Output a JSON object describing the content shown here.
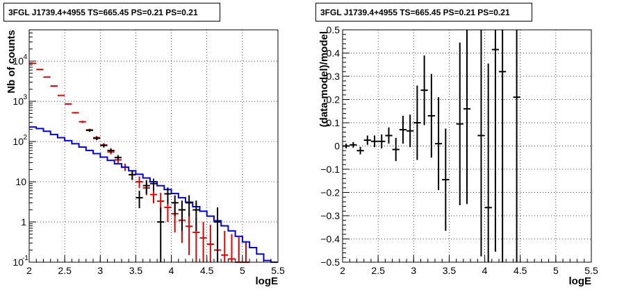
{
  "panels": [
    {
      "title": "3FGL J1739.4+4955 TS=665.45 PS=0.21 PS=0.21"
    },
    {
      "title": "3FGL J1739.4+4955 TS=665.45 PS=0.21 PS=0.21"
    }
  ],
  "chart_data": [
    {
      "type": "line",
      "title": "3FGL J1739.4+4955 TS=665.45 PS=0.21 PS=0.21",
      "xlabel": "logE",
      "ylabel": "Nb of counts",
      "xlim": [
        2,
        5.5
      ],
      "ylim": [
        0.1,
        60000
      ],
      "yscale": "log",
      "grid": true,
      "x_ticks": [
        "2",
        "2.5",
        "3",
        "3.5",
        "4",
        "4.5",
        "5",
        "5.5"
      ],
      "y_ticks": [
        {
          "value": 0.1,
          "label": "10",
          "exp": "-1"
        },
        {
          "value": 1,
          "label": "1",
          "exp": ""
        },
        {
          "value": 10,
          "label": "10",
          "exp": ""
        },
        {
          "value": 100,
          "label": "10",
          "exp": "2"
        },
        {
          "value": 1000,
          "label": "10",
          "exp": "3"
        },
        {
          "value": 10000,
          "label": "10",
          "exp": "4"
        }
      ],
      "colors": {
        "total_model": "#dd0000",
        "source_model": "#0000dd",
        "data": "#000000"
      },
      "series": [
        {
          "type": "errorbar",
          "color": "#dd0000",
          "points": [
            {
              "x": 2.05,
              "y": 8800,
              "lo": 8600,
              "hi": 9000
            },
            {
              "x": 2.15,
              "y": 6200,
              "lo": 6100,
              "hi": 6300
            },
            {
              "x": 2.25,
              "y": 4000,
              "lo": 3900,
              "hi": 4100
            },
            {
              "x": 2.35,
              "y": 2400,
              "lo": 2350,
              "hi": 2450
            },
            {
              "x": 2.45,
              "y": 1400,
              "lo": 1360,
              "hi": 1440
            },
            {
              "x": 2.55,
              "y": 860,
              "lo": 830,
              "hi": 890
            },
            {
              "x": 2.65,
              "y": 520,
              "lo": 495,
              "hi": 545
            },
            {
              "x": 2.75,
              "y": 310,
              "lo": 290,
              "hi": 330
            },
            {
              "x": 2.85,
              "y": 195,
              "lo": 180,
              "hi": 210
            },
            {
              "x": 2.95,
              "y": 125,
              "lo": 113,
              "hi": 137
            },
            {
              "x": 3.05,
              "y": 82,
              "lo": 73,
              "hi": 91
            },
            {
              "x": 3.15,
              "y": 55,
              "lo": 48,
              "hi": 62
            },
            {
              "x": 3.25,
              "y": 35,
              "lo": 29,
              "hi": 41
            },
            {
              "x": 3.35,
              "y": 23,
              "lo": 18.5,
              "hi": 28
            },
            {
              "x": 3.45,
              "y": 15,
              "lo": 11.3,
              "hi": 19
            },
            {
              "x": 3.55,
              "y": 10,
              "lo": 7,
              "hi": 13.5
            },
            {
              "x": 3.65,
              "y": 7,
              "lo": 4.6,
              "hi": 9.8
            },
            {
              "x": 3.75,
              "y": 4.8,
              "lo": 2.9,
              "hi": 7.2
            },
            {
              "x": 3.85,
              "y": 3.3,
              "lo": 1.7,
              "hi": 5.3
            },
            {
              "x": 3.95,
              "y": 2.3,
              "lo": 1.0,
              "hi": 3.9
            },
            {
              "x": 4.05,
              "y": 1.6,
              "lo": 0.55,
              "hi": 2.9
            },
            {
              "x": 4.15,
              "y": 1.1,
              "lo": 0.3,
              "hi": 2.2
            },
            {
              "x": 4.25,
              "y": 0.78,
              "lo": 0.15,
              "hi": 1.7
            },
            {
              "x": 4.35,
              "y": 0.55,
              "lo": 0.1,
              "hi": 1.3
            },
            {
              "x": 4.45,
              "y": 0.4,
              "lo": 0.1,
              "hi": 1.0
            },
            {
              "x": 4.55,
              "y": 0.28,
              "lo": 0.1,
              "hi": 0.85
            },
            {
              "x": 4.65,
              "y": 0.2,
              "lo": 0.1,
              "hi": 0.7
            },
            {
              "x": 4.75,
              "y": 0.15,
              "lo": 0.1,
              "hi": 0.6
            },
            {
              "x": 4.85,
              "y": 0.12,
              "lo": 0.1,
              "hi": 0.5
            },
            {
              "x": 4.95,
              "y": 0.1,
              "lo": 0.1,
              "hi": 0.42
            },
            {
              "x": 5.05,
              "y": 0.1,
              "lo": 0.1,
              "hi": 0.33
            }
          ]
        },
        {
          "type": "step",
          "color": "#0000dd",
          "edges": [
            2.0,
            2.1,
            2.2,
            2.3,
            2.4,
            2.5,
            2.6,
            2.7,
            2.8,
            2.9,
            3.0,
            3.1,
            3.2,
            3.3,
            3.4,
            3.5,
            3.6,
            3.7,
            3.8,
            3.9,
            4.0,
            4.1,
            4.2,
            4.3,
            4.4,
            4.5,
            4.6,
            4.7,
            4.8,
            4.9,
            5.0,
            5.1,
            5.2,
            5.3,
            5.4,
            5.5
          ],
          "values": [
            230,
            210,
            180,
            150,
            125,
            105,
            88,
            73,
            60,
            50,
            41,
            34,
            28,
            23,
            18.8,
            15.3,
            12.4,
            10,
            8,
            6.4,
            5.1,
            4,
            3.1,
            2.4,
            1.85,
            1.4,
            1.07,
            0.8,
            0.6,
            0.44,
            0.32,
            0.23,
            0.16,
            0.11,
            0.1
          ]
        },
        {
          "type": "errorbar",
          "color": "#000000",
          "points": [
            {
              "x": 2.85,
              "y": 190,
              "lo": 175,
              "hi": 205
            },
            {
              "x": 2.95,
              "y": 120,
              "lo": 108,
              "hi": 132
            },
            {
              "x": 3.05,
              "y": 80,
              "lo": 71,
              "hi": 89
            },
            {
              "x": 3.15,
              "y": 60,
              "lo": 52,
              "hi": 68
            },
            {
              "x": 3.25,
              "y": 40,
              "lo": 34,
              "hi": 46
            },
            {
              "x": 3.45,
              "y": 15,
              "lo": 11,
              "hi": 19
            },
            {
              "x": 3.55,
              "y": 4,
              "lo": 2.2,
              "hi": 6
            },
            {
              "x": 3.65,
              "y": 8,
              "lo": 5,
              "hi": 11
            },
            {
              "x": 3.75,
              "y": 9,
              "lo": 6,
              "hi": 12
            },
            {
              "x": 3.85,
              "y": 1,
              "lo": 0.1,
              "hi": 2.3
            },
            {
              "x": 3.95,
              "y": 5,
              "lo": 2.8,
              "hi": 7.2
            },
            {
              "x": 4.05,
              "y": 3,
              "lo": 1.4,
              "hi": 4.6
            },
            {
              "x": 4.15,
              "y": 2,
              "lo": 0.6,
              "hi": 3.4
            },
            {
              "x": 4.25,
              "y": 3,
              "lo": 1.4,
              "hi": 4.6
            },
            {
              "x": 4.35,
              "y": 2,
              "lo": 0.6,
              "hi": 3.4
            },
            {
              "x": 4.65,
              "y": 1,
              "lo": 0.1,
              "hi": 2.3
            }
          ]
        }
      ]
    },
    {
      "type": "scatter",
      "title": "3FGL J1739.4+4955 TS=665.45 PS=0.21 PS=0.21",
      "xlabel": "logE",
      "ylabel": "(data-model)/model",
      "xlim": [
        2,
        5.5
      ],
      "ylim": [
        -0.5,
        0.5
      ],
      "grid": true,
      "x_ticks": [
        "2",
        "2.5",
        "3",
        "3.5",
        "4",
        "4.5",
        "5",
        "5.5"
      ],
      "y_ticks": [
        "−0.5",
        "−0.4",
        "−0.3",
        "−0.2",
        "−0.1",
        "0",
        "0.1",
        "0.2",
        "0.3",
        "0.4",
        "0.5"
      ],
      "colors": {
        "residual": "#000000"
      },
      "series": [
        {
          "type": "errorbar",
          "color": "#000000",
          "points": [
            {
              "x": 2.05,
              "y": 0.0,
              "err": 0.01
            },
            {
              "x": 2.15,
              "y": 0.005,
              "err": 0.012
            },
            {
              "x": 2.25,
              "y": -0.02,
              "err": 0.016
            },
            {
              "x": 2.35,
              "y": 0.025,
              "err": 0.02
            },
            {
              "x": 2.45,
              "y": 0.02,
              "err": 0.025
            },
            {
              "x": 2.55,
              "y": 0.02,
              "err": 0.03
            },
            {
              "x": 2.65,
              "y": 0.045,
              "err": 0.035
            },
            {
              "x": 2.75,
              "y": -0.015,
              "err": 0.05
            },
            {
              "x": 2.85,
              "y": 0.07,
              "err": 0.06
            },
            {
              "x": 2.95,
              "y": 0.065,
              "err": 0.07
            },
            {
              "x": 3.05,
              "y": 0.1,
              "err": 0.16
            },
            {
              "x": 3.15,
              "y": 0.24,
              "err": 0.15
            },
            {
              "x": 3.25,
              "y": 0.13,
              "err": 0.18
            },
            {
              "x": 3.35,
              "y": 0.01,
              "err": 0.2
            },
            {
              "x": 3.45,
              "y": -0.145,
              "err": 0.22
            },
            {
              "x": 3.65,
              "y": 0.095,
              "err": 0.35
            },
            {
              "x": 3.75,
              "y": 0.16,
              "err": 0.41
            },
            {
              "x": 3.95,
              "y": 0.045,
              "err": 0.52
            },
            {
              "x": 4.05,
              "y": -0.265,
              "err": 0.62
            },
            {
              "x": 4.15,
              "y": 0.415,
              "err": 0.87
            },
            {
              "x": 4.25,
              "y": 0.32,
              "err": 0.85
            },
            {
              "x": 4.45,
              "y": 0.21,
              "err": 0.9
            }
          ]
        }
      ]
    }
  ]
}
